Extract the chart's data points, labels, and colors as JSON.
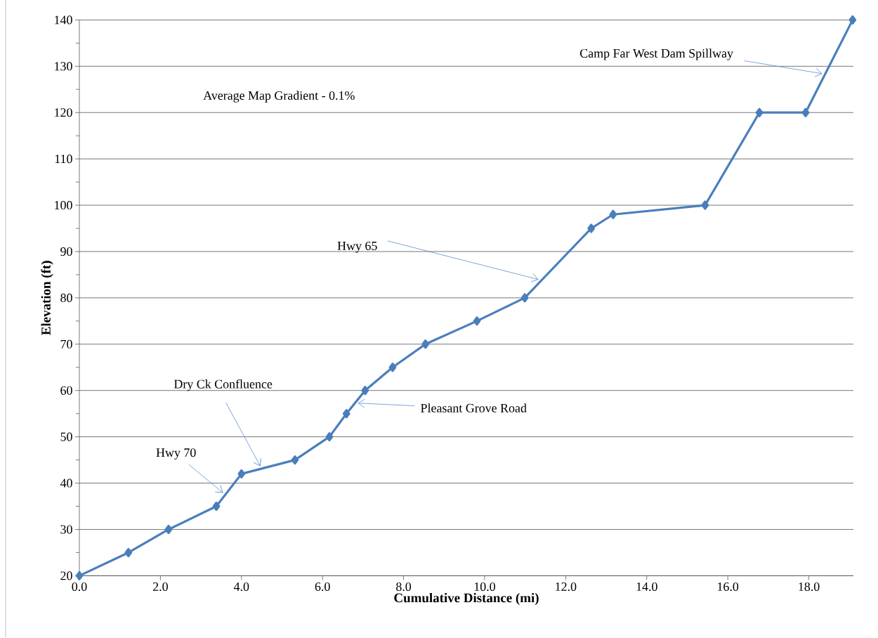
{
  "chart_data": {
    "type": "line",
    "xlabel": "Cumulative Distance (mi)",
    "ylabel": "Elevation (ft)",
    "x": [
      0,
      1.21,
      2.2,
      3.38,
      4.0,
      5.32,
      6.17,
      6.59,
      7.05,
      7.73,
      8.54,
      9.81,
      10.99,
      12.63,
      13.17,
      15.44,
      16.78,
      17.92,
      19.08
    ],
    "series": [
      {
        "color": "#4a7ebb",
        "values": [
          20,
          25,
          30,
          35,
          42,
          45,
          50,
          55,
          60,
          65,
          70,
          75,
          80,
          95,
          98,
          100,
          120,
          120,
          140
        ]
      }
    ],
    "xlim": [
      0,
      19.1
    ],
    "ylim": [
      20,
      140
    ],
    "xticks": [
      {
        "value": 0,
        "label": "0.0"
      },
      {
        "value": 2,
        "label": "2.0"
      },
      {
        "value": 4,
        "label": "4.0"
      },
      {
        "value": 6,
        "label": "6.0"
      },
      {
        "value": 8,
        "label": "8.0"
      },
      {
        "value": 10,
        "label": "10.0"
      },
      {
        "value": 12,
        "label": "12.0"
      },
      {
        "value": 14,
        "label": "14.0"
      },
      {
        "value": 16,
        "label": "16.0"
      },
      {
        "value": 18,
        "label": "18.0"
      }
    ],
    "yticks": [
      20,
      30,
      40,
      50,
      60,
      70,
      80,
      90,
      100,
      110,
      120,
      130,
      140
    ],
    "grid": "y",
    "marker": "diamond",
    "line_style": "solid",
    "annotations": [
      {
        "text": "Hwy 70",
        "x": 3.6,
        "y": 37.5
      },
      {
        "text": "Dry Ck Confluence",
        "x": 4.5,
        "y": 43.1
      },
      {
        "text": "Pleasant Grove Road",
        "x": 6.8,
        "y": 57.3
      },
      {
        "text": "Hwy 65",
        "x": 11.4,
        "y": 83.8
      },
      {
        "text": "Camp Far West Dam Spillway",
        "x": 18.4,
        "y": 128.3
      },
      "Average Map Gradient - 0.1%"
    ]
  }
}
